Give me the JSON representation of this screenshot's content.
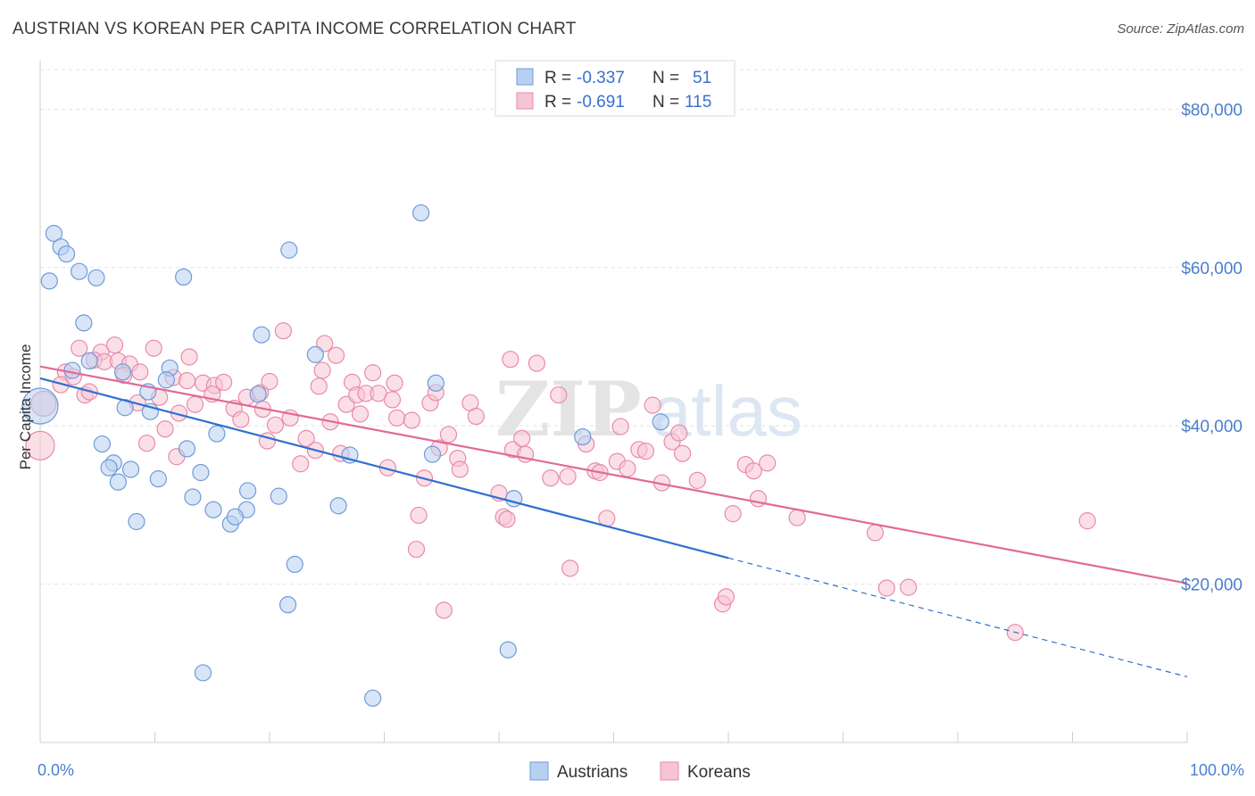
{
  "title": "AUSTRIAN VS KOREAN PER CAPITA INCOME CORRELATION CHART",
  "source": "Source: ZipAtlas.com",
  "watermark": {
    "zip": "ZIP",
    "atlas": "atlas"
  },
  "colors": {
    "austrians_fill": "#b8d0f0",
    "austrians_stroke": "#6d9bd8",
    "austrians_line": "#2f6fd0",
    "koreans_fill": "#f7c4d4",
    "koreans_stroke": "#e98aaa",
    "koreans_line": "#e06a96",
    "tick_label": "#4a7fcf"
  },
  "legend_top": {
    "rows": [
      {
        "r_label": "R = ",
        "r_value": "-0.337",
        "n_label": "N = ",
        "n_value": "51"
      },
      {
        "r_label": "R = ",
        "r_value": "-0.691",
        "n_label": "N = ",
        "n_value": "115"
      }
    ]
  },
  "chart_data": {
    "type": "scatter",
    "title": "AUSTRIAN VS KOREAN PER CAPITA INCOME CORRELATION CHART",
    "xlabel": "",
    "ylabel": "Per Capita Income",
    "xlim": [
      0,
      100
    ],
    "ylim": [
      0,
      85000
    ],
    "x_tick_labels": [
      "0.0%",
      "100.0%"
    ],
    "y_ticks": [
      20000,
      40000,
      60000,
      80000
    ],
    "y_tick_labels": [
      "$20,000",
      "$40,000",
      "$60,000",
      "$80,000"
    ],
    "grid": true,
    "legend_position": "top-center",
    "series": [
      {
        "name": "Austrians",
        "r": -0.337,
        "n": 51,
        "trend": {
          "x0": 0,
          "y0": 46000,
          "x1": 60,
          "y1": 23300,
          "dashed_to_x": 100,
          "dashed_to_y": 8300
        },
        "points": [
          {
            "x": 0.0,
            "y": 42500,
            "r": 20
          },
          {
            "x": 1.2,
            "y": 64300
          },
          {
            "x": 1.8,
            "y": 62600
          },
          {
            "x": 2.3,
            "y": 61700
          },
          {
            "x": 0.8,
            "y": 58300
          },
          {
            "x": 3.4,
            "y": 59500
          },
          {
            "x": 4.9,
            "y": 58700
          },
          {
            "x": 3.8,
            "y": 53000
          },
          {
            "x": 4.3,
            "y": 48200
          },
          {
            "x": 2.8,
            "y": 47000
          },
          {
            "x": 7.2,
            "y": 46800
          },
          {
            "x": 11.3,
            "y": 47300
          },
          {
            "x": 11.0,
            "y": 45800
          },
          {
            "x": 9.4,
            "y": 44300
          },
          {
            "x": 7.4,
            "y": 42300
          },
          {
            "x": 9.6,
            "y": 41800
          },
          {
            "x": 12.5,
            "y": 58800
          },
          {
            "x": 21.7,
            "y": 62200
          },
          {
            "x": 33.2,
            "y": 66900
          },
          {
            "x": 19.3,
            "y": 51500
          },
          {
            "x": 24.0,
            "y": 49000
          },
          {
            "x": 19.0,
            "y": 44000
          },
          {
            "x": 34.5,
            "y": 45400
          },
          {
            "x": 15.4,
            "y": 39000
          },
          {
            "x": 5.4,
            "y": 37700
          },
          {
            "x": 12.8,
            "y": 37100
          },
          {
            "x": 6.4,
            "y": 35300
          },
          {
            "x": 6.0,
            "y": 34700
          },
          {
            "x": 7.9,
            "y": 34500
          },
          {
            "x": 14.0,
            "y": 34100
          },
          {
            "x": 10.3,
            "y": 33300
          },
          {
            "x": 6.8,
            "y": 32900
          },
          {
            "x": 27.0,
            "y": 36300
          },
          {
            "x": 34.2,
            "y": 36400
          },
          {
            "x": 13.3,
            "y": 31000
          },
          {
            "x": 18.1,
            "y": 31800
          },
          {
            "x": 20.8,
            "y": 31100
          },
          {
            "x": 26.0,
            "y": 29900
          },
          {
            "x": 15.1,
            "y": 29400
          },
          {
            "x": 18.0,
            "y": 29400
          },
          {
            "x": 8.4,
            "y": 27900
          },
          {
            "x": 16.6,
            "y": 27600
          },
          {
            "x": 17.0,
            "y": 28500
          },
          {
            "x": 22.2,
            "y": 22500
          },
          {
            "x": 21.6,
            "y": 17400
          },
          {
            "x": 47.3,
            "y": 38600
          },
          {
            "x": 54.1,
            "y": 40500
          },
          {
            "x": 41.3,
            "y": 30800
          },
          {
            "x": 14.2,
            "y": 8800
          },
          {
            "x": 40.8,
            "y": 11700
          },
          {
            "x": 29.0,
            "y": 5600
          }
        ]
      },
      {
        "name": "Koreans",
        "r": -0.691,
        "n": 115,
        "trend": {
          "x0": 0,
          "y0": 47500,
          "x1": 100,
          "y1": 20100
        },
        "points": [
          {
            "x": 0.0,
            "y": 37500,
            "r": 16
          },
          {
            "x": 0.3,
            "y": 42800,
            "r": 14
          },
          {
            "x": 2.2,
            "y": 46800
          },
          {
            "x": 1.8,
            "y": 45200
          },
          {
            "x": 2.9,
            "y": 46200
          },
          {
            "x": 3.4,
            "y": 49800
          },
          {
            "x": 5.3,
            "y": 49300
          },
          {
            "x": 6.5,
            "y": 50200
          },
          {
            "x": 4.7,
            "y": 48300
          },
          {
            "x": 5.6,
            "y": 48100
          },
          {
            "x": 6.8,
            "y": 48200
          },
          {
            "x": 7.8,
            "y": 47800
          },
          {
            "x": 3.9,
            "y": 43900
          },
          {
            "x": 4.3,
            "y": 44300
          },
          {
            "x": 7.3,
            "y": 46400
          },
          {
            "x": 8.7,
            "y": 46800
          },
          {
            "x": 9.9,
            "y": 49800
          },
          {
            "x": 8.5,
            "y": 42900
          },
          {
            "x": 10.4,
            "y": 43600
          },
          {
            "x": 11.6,
            "y": 46100
          },
          {
            "x": 12.8,
            "y": 45700
          },
          {
            "x": 13.5,
            "y": 42700
          },
          {
            "x": 14.2,
            "y": 45400
          },
          {
            "x": 15.2,
            "y": 45100
          },
          {
            "x": 16.0,
            "y": 45500
          },
          {
            "x": 13.0,
            "y": 48700
          },
          {
            "x": 10.9,
            "y": 39600
          },
          {
            "x": 9.3,
            "y": 37800
          },
          {
            "x": 11.9,
            "y": 36100
          },
          {
            "x": 12.1,
            "y": 41600
          },
          {
            "x": 15.0,
            "y": 44000
          },
          {
            "x": 16.9,
            "y": 42200
          },
          {
            "x": 17.5,
            "y": 40800
          },
          {
            "x": 18.0,
            "y": 43600
          },
          {
            "x": 19.2,
            "y": 44200
          },
          {
            "x": 19.4,
            "y": 42100
          },
          {
            "x": 20.0,
            "y": 45600
          },
          {
            "x": 21.2,
            "y": 52000
          },
          {
            "x": 20.5,
            "y": 40100
          },
          {
            "x": 21.8,
            "y": 41000
          },
          {
            "x": 19.8,
            "y": 38100
          },
          {
            "x": 22.7,
            "y": 35200
          },
          {
            "x": 23.2,
            "y": 38400
          },
          {
            "x": 24.3,
            "y": 45000
          },
          {
            "x": 24.6,
            "y": 47000
          },
          {
            "x": 24.8,
            "y": 50400
          },
          {
            "x": 25.8,
            "y": 48900
          },
          {
            "x": 25.3,
            "y": 40500
          },
          {
            "x": 26.2,
            "y": 36500
          },
          {
            "x": 24.0,
            "y": 36900
          },
          {
            "x": 26.7,
            "y": 42700
          },
          {
            "x": 27.2,
            "y": 45500
          },
          {
            "x": 27.6,
            "y": 43900
          },
          {
            "x": 27.9,
            "y": 41500
          },
          {
            "x": 28.4,
            "y": 44100
          },
          {
            "x": 29.0,
            "y": 46700
          },
          {
            "x": 29.5,
            "y": 44100
          },
          {
            "x": 30.7,
            "y": 43300
          },
          {
            "x": 30.9,
            "y": 45400
          },
          {
            "x": 30.3,
            "y": 34700
          },
          {
            "x": 31.1,
            "y": 41000
          },
          {
            "x": 32.4,
            "y": 40700
          },
          {
            "x": 34.0,
            "y": 42900
          },
          {
            "x": 34.5,
            "y": 44200
          },
          {
            "x": 34.8,
            "y": 37200
          },
          {
            "x": 35.6,
            "y": 38900
          },
          {
            "x": 36.4,
            "y": 35900
          },
          {
            "x": 36.6,
            "y": 34500
          },
          {
            "x": 37.5,
            "y": 42900
          },
          {
            "x": 38.0,
            "y": 41200
          },
          {
            "x": 33.0,
            "y": 28700
          },
          {
            "x": 33.5,
            "y": 33400
          },
          {
            "x": 32.8,
            "y": 24400
          },
          {
            "x": 35.2,
            "y": 16700
          },
          {
            "x": 40.0,
            "y": 31500
          },
          {
            "x": 40.4,
            "y": 28500
          },
          {
            "x": 40.7,
            "y": 28200
          },
          {
            "x": 41.0,
            "y": 48400
          },
          {
            "x": 41.2,
            "y": 37000
          },
          {
            "x": 42.0,
            "y": 38400
          },
          {
            "x": 42.3,
            "y": 36400
          },
          {
            "x": 43.3,
            "y": 47900
          },
          {
            "x": 44.5,
            "y": 33400
          },
          {
            "x": 45.2,
            "y": 43900
          },
          {
            "x": 46.0,
            "y": 33600
          },
          {
            "x": 47.6,
            "y": 37700
          },
          {
            "x": 48.4,
            "y": 34300
          },
          {
            "x": 48.8,
            "y": 34100
          },
          {
            "x": 49.4,
            "y": 28300
          },
          {
            "x": 50.3,
            "y": 35500
          },
          {
            "x": 50.6,
            "y": 39900
          },
          {
            "x": 51.2,
            "y": 34600
          },
          {
            "x": 52.2,
            "y": 37000
          },
          {
            "x": 52.8,
            "y": 36800
          },
          {
            "x": 53.4,
            "y": 42600
          },
          {
            "x": 54.2,
            "y": 32800
          },
          {
            "x": 55.1,
            "y": 38000
          },
          {
            "x": 55.7,
            "y": 39100
          },
          {
            "x": 56.0,
            "y": 36500
          },
          {
            "x": 57.3,
            "y": 33100
          },
          {
            "x": 59.5,
            "y": 17500
          },
          {
            "x": 59.8,
            "y": 18400
          },
          {
            "x": 60.4,
            "y": 28900
          },
          {
            "x": 61.5,
            "y": 35100
          },
          {
            "x": 62.2,
            "y": 34300
          },
          {
            "x": 62.6,
            "y": 30800
          },
          {
            "x": 63.4,
            "y": 35300
          },
          {
            "x": 46.2,
            "y": 22000
          },
          {
            "x": 66.0,
            "y": 28400
          },
          {
            "x": 72.8,
            "y": 26500
          },
          {
            "x": 73.8,
            "y": 19500
          },
          {
            "x": 75.7,
            "y": 19600
          },
          {
            "x": 85.0,
            "y": 13900
          },
          {
            "x": 91.3,
            "y": 28000
          }
        ]
      }
    ]
  },
  "bottom_legend": {
    "items": [
      "Austrians",
      "Koreans"
    ]
  }
}
